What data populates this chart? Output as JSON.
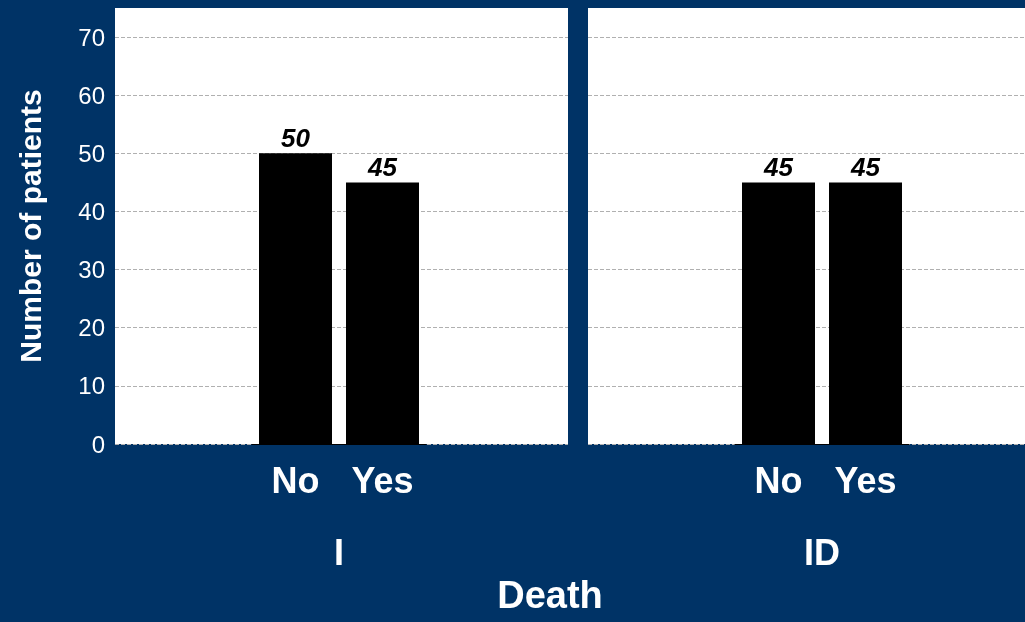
{
  "chart_data": [
    {
      "type": "bar",
      "categories": [
        "No",
        "Yes"
      ],
      "values": [
        50,
        45
      ],
      "color": "#000000",
      "xlabel": "I",
      "ylabel": "Number of patients",
      "ylim": [
        0,
        75
      ],
      "yticks": [
        0,
        10,
        20,
        30,
        40,
        50,
        60,
        70
      ],
      "grid": "y",
      "data_labels": true,
      "annotations": [
        "Death"
      ]
    },
    {
      "type": "bar",
      "categories": [
        "No",
        "Yes"
      ],
      "values": [
        45,
        45
      ],
      "color": "#000000",
      "xlabel": "ID",
      "ylim": [
        0,
        75
      ],
      "yticks": [
        0,
        10,
        20,
        30,
        40,
        50,
        60,
        70
      ],
      "grid": "y",
      "data_labels": true,
      "tick_labels": "x"
    }
  ]
}
